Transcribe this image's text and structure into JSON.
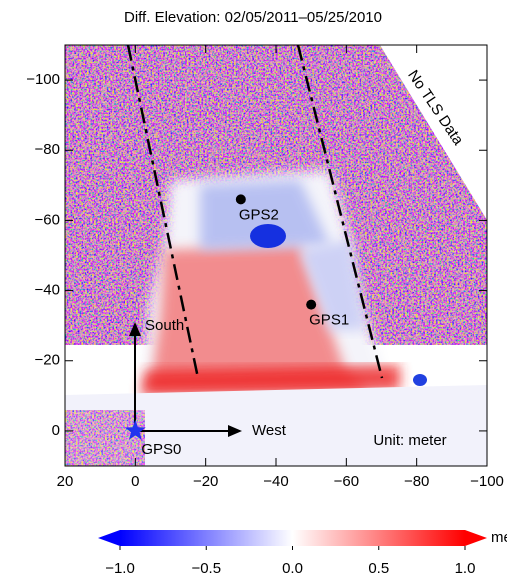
{
  "chart_data": {
    "type": "map",
    "title": "Diff. Elevation: 02/05/2011–05/25/2010",
    "xlim": [
      20,
      -100
    ],
    "ylim": [
      10,
      -110
    ],
    "xticks": [
      20,
      0,
      {
        "value": -20,
        "label": "−20"
      },
      {
        "value": -40,
        "label": "−40"
      },
      {
        "value": -60,
        "label": "−60"
      },
      {
        "value": -80,
        "label": "−80"
      },
      {
        "value": -100,
        "label": "−100"
      }
    ],
    "yticks": [
      0,
      {
        "value": -20,
        "label": "−20"
      },
      {
        "value": -40,
        "label": "−40"
      },
      {
        "value": -60,
        "label": "−60"
      },
      {
        "value": -80,
        "label": "−80"
      },
      {
        "value": -100,
        "label": "−100"
      }
    ],
    "points": [
      {
        "name": "GPS2",
        "x": -30,
        "y": -66
      },
      {
        "name": "GPS1",
        "x": -50,
        "y": -36
      },
      {
        "name": "GPS0",
        "x": 0,
        "y": 0
      }
    ],
    "annotations": [
      "No TLS Data",
      "South",
      "West",
      "Unit: meter"
    ],
    "colorbar": {
      "label": "meter",
      "lim": [
        -1,
        1
      ],
      "colors": [
        "#0000ff",
        "#ffffff",
        "#ff0000"
      ],
      "ticks": [
        {
          "value": -1,
          "label": "−1.0"
        },
        {
          "value": -0.5,
          "label": "−0.5"
        },
        {
          "value": 0,
          "label": "0.0"
        },
        {
          "value": 0.5,
          "label": "0.5"
        },
        {
          "value": 1,
          "label": "1.0"
        }
      ]
    }
  }
}
